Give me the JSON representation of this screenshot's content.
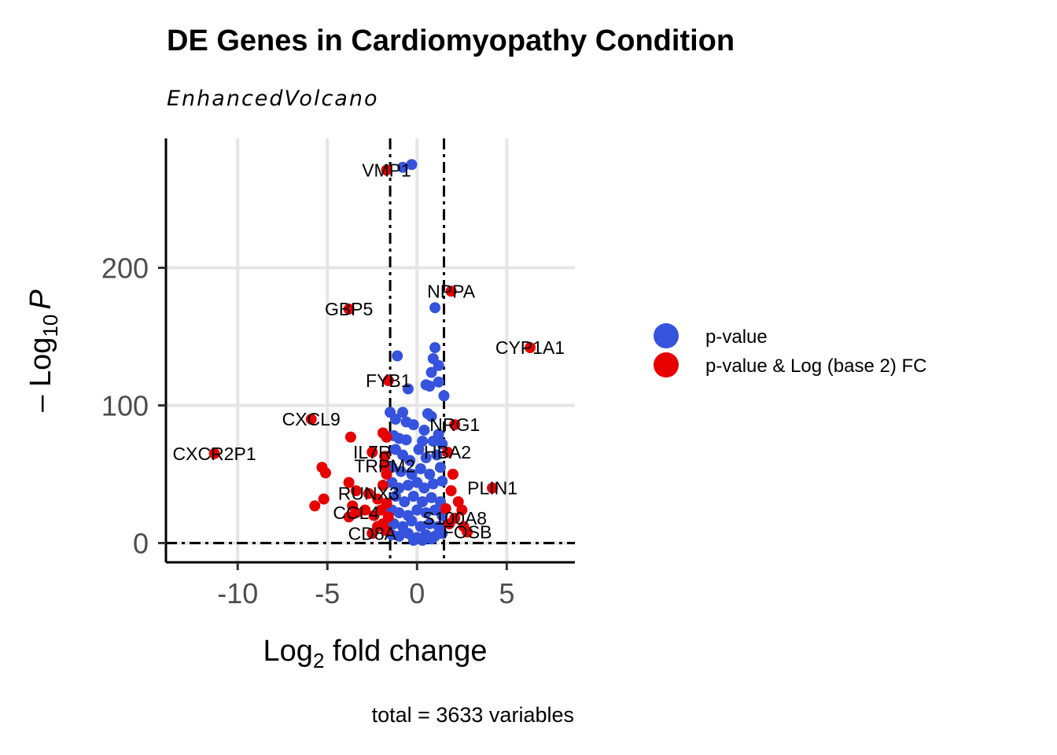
{
  "chart_data": {
    "type": "scatter",
    "title": "DE Genes in Cardiomyopathy Condition",
    "subtitle": "EnhancedVolcano",
    "xlabel": {
      "base": "Log",
      "sub": "2",
      "rest": " fold change"
    },
    "ylabel": {
      "prefix": "– Log",
      "sub": "10",
      "var": "P"
    },
    "caption": "total = 3633 variables",
    "xlim": [
      -14,
      8.8
    ],
    "ylim": [
      -14,
      294
    ],
    "x_ticks": [
      {
        "value": -10,
        "label": "-10"
      },
      {
        "value": -5,
        "label": "-5"
      },
      {
        "value": 0,
        "label": "0"
      },
      {
        "value": 5,
        "label": "5"
      }
    ],
    "y_ticks": [
      {
        "value": 0,
        "label": "0"
      },
      {
        "value": 100,
        "label": "100"
      },
      {
        "value": 200,
        "label": "200"
      }
    ],
    "fc_cutoff": 1.5,
    "p_cutoff": 0,
    "grid": true,
    "legend_position": "right",
    "colors": {
      "p_value": "#3553dd",
      "p_value_and_fc": "#e60000",
      "grid": "#e5e5e5",
      "axis": "#000000"
    },
    "legend": [
      {
        "name": "p-value",
        "color": "#3553dd"
      },
      {
        "name": "p-value & Log (base 2) FC",
        "color": "#e60000"
      }
    ],
    "series": [
      {
        "name": "p-value",
        "points": [
          [
            -0.8,
            273
          ],
          [
            -0.3,
            275
          ],
          [
            1.0,
            171
          ],
          [
            -1.1,
            136
          ],
          [
            1.0,
            142
          ],
          [
            0.9,
            134
          ],
          [
            1.2,
            129
          ],
          [
            0.8,
            124
          ],
          [
            1.2,
            117
          ],
          [
            0.5,
            115
          ],
          [
            0.7,
            114
          ],
          [
            1.5,
            107
          ],
          [
            -0.5,
            112
          ],
          [
            -1.5,
            95
          ],
          [
            -0.8,
            95
          ],
          [
            -1.2,
            90
          ],
          [
            -0.6,
            88
          ],
          [
            -0.2,
            86
          ],
          [
            0.6,
            94
          ],
          [
            0.8,
            92
          ],
          [
            0.4,
            82
          ],
          [
            1.2,
            79
          ],
          [
            -1.3,
            78
          ],
          [
            -1.0,
            76
          ],
          [
            -0.6,
            75
          ],
          [
            0.3,
            74
          ],
          [
            0.9,
            74
          ],
          [
            1.4,
            72
          ],
          [
            -1.2,
            68
          ],
          [
            -0.8,
            64
          ],
          [
            -0.4,
            60
          ],
          [
            0.1,
            68
          ],
          [
            0.5,
            62
          ],
          [
            1.1,
            64
          ],
          [
            -1.4,
            55
          ],
          [
            -0.9,
            52
          ],
          [
            -0.3,
            50
          ],
          [
            0.2,
            54
          ],
          [
            0.7,
            50
          ],
          [
            1.3,
            55
          ],
          [
            -1.4,
            44
          ],
          [
            -1.0,
            40
          ],
          [
            -0.5,
            42
          ],
          [
            0.0,
            44
          ],
          [
            0.4,
            40
          ],
          [
            0.9,
            43
          ],
          [
            1.4,
            45
          ],
          [
            -1.2,
            34
          ],
          [
            -0.7,
            30
          ],
          [
            -0.2,
            34
          ],
          [
            0.3,
            30
          ],
          [
            0.8,
            33
          ],
          [
            1.3,
            30
          ],
          [
            -1.4,
            24
          ],
          [
            -1.0,
            22
          ],
          [
            -0.5,
            20
          ],
          [
            0.0,
            24
          ],
          [
            0.5,
            22
          ],
          [
            1.0,
            24
          ],
          [
            1.4,
            20
          ],
          [
            -1.3,
            14
          ],
          [
            -0.8,
            12
          ],
          [
            -0.3,
            16
          ],
          [
            0.2,
            12
          ],
          [
            0.7,
            14
          ],
          [
            1.2,
            12
          ],
          [
            -1.4,
            6
          ],
          [
            -1.0,
            5
          ],
          [
            -0.5,
            7
          ],
          [
            0.0,
            4
          ],
          [
            0.5,
            6
          ],
          [
            1.0,
            5
          ],
          [
            1.4,
            7
          ],
          [
            -0.2,
            2
          ],
          [
            0.3,
            2
          ],
          [
            0.8,
            3
          ]
        ]
      },
      {
        "name": "p-value & Log (base 2) FC",
        "points": [
          [
            -1.7,
            271
          ],
          [
            1.9,
            183
          ],
          [
            -3.8,
            170
          ],
          [
            6.3,
            142
          ],
          [
            -1.6,
            118
          ],
          [
            -5.9,
            90
          ],
          [
            2.1,
            86
          ],
          [
            -3.7,
            77
          ],
          [
            -1.9,
            80
          ],
          [
            -1.7,
            77
          ],
          [
            -11.3,
            65
          ],
          [
            -2.5,
            66
          ],
          [
            -1.8,
            63
          ],
          [
            1.7,
            66
          ],
          [
            -5.3,
            55
          ],
          [
            -5.1,
            51
          ],
          [
            -3.8,
            44
          ],
          [
            -1.8,
            56
          ],
          [
            -1.7,
            50
          ],
          [
            2.0,
            50
          ],
          [
            4.2,
            40
          ],
          [
            1.9,
            38
          ],
          [
            -5.2,
            32
          ],
          [
            -5.7,
            27
          ],
          [
            -3.4,
            38
          ],
          [
            -2.7,
            36
          ],
          [
            -2.2,
            32
          ],
          [
            -1.9,
            42
          ],
          [
            -3.6,
            27
          ],
          [
            -3.4,
            22
          ],
          [
            -3.8,
            19
          ],
          [
            -2.9,
            24
          ],
          [
            -2.4,
            20
          ],
          [
            -2.0,
            24
          ],
          [
            -1.7,
            29
          ],
          [
            -1.6,
            19
          ],
          [
            2.3,
            30
          ],
          [
            2.5,
            24
          ],
          [
            2.1,
            18
          ],
          [
            2.6,
            12
          ],
          [
            2.8,
            8
          ],
          [
            1.8,
            14
          ],
          [
            1.6,
            25
          ],
          [
            -2.2,
            12
          ],
          [
            -1.9,
            14
          ],
          [
            -1.7,
            9
          ],
          [
            -2.5,
            7
          ]
        ]
      }
    ],
    "labels": [
      {
        "text": "VMP1",
        "x": -1.7,
        "y": 271
      },
      {
        "text": "NPPA",
        "x": 1.9,
        "y": 183
      },
      {
        "text": "GBP5",
        "x": -3.8,
        "y": 170
      },
      {
        "text": "CYP1A1",
        "x": 6.3,
        "y": 142
      },
      {
        "text": "FYB1",
        "x": -1.6,
        "y": 118
      },
      {
        "text": "CXCL9",
        "x": -5.9,
        "y": 90
      },
      {
        "text": "NRG1",
        "x": 2.1,
        "y": 86
      },
      {
        "text": "CXCR2P1",
        "x": -11.3,
        "y": 65
      },
      {
        "text": "IL7R",
        "x": -2.5,
        "y": 66
      },
      {
        "text": "HBA2",
        "x": 1.7,
        "y": 66
      },
      {
        "text": "TRPM2",
        "x": -1.8,
        "y": 56
      },
      {
        "text": "RUNX3",
        "x": -2.7,
        "y": 36
      },
      {
        "text": "PLIN1",
        "x": 4.2,
        "y": 40
      },
      {
        "text": "CCL4",
        "x": -3.4,
        "y": 22
      },
      {
        "text": "S100A8",
        "x": 2.1,
        "y": 18
      },
      {
        "text": "CD8A",
        "x": -2.5,
        "y": 7
      },
      {
        "text": "FOSB",
        "x": 2.8,
        "y": 8
      }
    ]
  }
}
